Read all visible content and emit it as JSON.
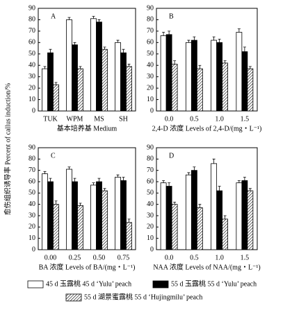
{
  "ylabel": "愈伤组织诱导率 Percent of callus induction/%",
  "legend": [
    {
      "name": "45 d 玉露桃 45 d ‘Yulu’ peach",
      "fill": "#ffffff"
    },
    {
      "name": "55 d 玉露桃 55 d ‘Yulu’ peach",
      "fill": "#000000"
    },
    {
      "name": "55 d 湖景蜜露桃 55 d ‘Hujingmilu’ peach",
      "fill": "hatch"
    }
  ],
  "chart_data": [
    {
      "type": "bar",
      "label": "A",
      "xlabel": "基本培养基 Medium",
      "categories": [
        "TUK",
        "WPM",
        "MS",
        "SH"
      ],
      "ylim": [
        0,
        90
      ],
      "yticks": [
        0,
        10,
        20,
        30,
        40,
        50,
        60,
        70,
        80,
        90
      ],
      "series": [
        {
          "values": [
            37,
            80,
            81,
            60
          ],
          "errors": [
            2,
            2,
            2,
            2
          ]
        },
        {
          "values": [
            51,
            58,
            78,
            51
          ],
          "errors": [
            3,
            2,
            2,
            3
          ]
        },
        {
          "values": [
            23,
            37,
            54,
            39
          ],
          "errors": [
            2,
            2,
            2,
            2
          ]
        }
      ]
    },
    {
      "type": "bar",
      "label": "B",
      "xlabel": "2,4-D 浓度 Levels of 2,4-D/(mg・L⁻¹)",
      "categories": [
        "0.0",
        "0.5",
        "1.0",
        "1.5"
      ],
      "ylim": [
        0,
        90
      ],
      "yticks": [
        0,
        10,
        20,
        30,
        40,
        50,
        60,
        70,
        80,
        90
      ],
      "series": [
        {
          "values": [
            66,
            60,
            62,
            69
          ],
          "errors": [
            3,
            2,
            3,
            3
          ]
        },
        {
          "values": [
            67,
            62,
            60,
            52
          ],
          "errors": [
            3,
            3,
            3,
            4
          ]
        },
        {
          "values": [
            41,
            37,
            42,
            37
          ],
          "errors": [
            3,
            3,
            2,
            2
          ]
        }
      ]
    },
    {
      "type": "bar",
      "label": "C",
      "xlabel": "BA 浓度 Levels of BA/(mg・L⁻¹)",
      "categories": [
        "0.00",
        "0.25",
        "0.50",
        "0.75"
      ],
      "ylim": [
        0,
        90
      ],
      "yticks": [
        0,
        10,
        20,
        30,
        40,
        50,
        60,
        70,
        80,
        90
      ],
      "series": [
        {
          "values": [
            67,
            71,
            57,
            64
          ],
          "errors": [
            2,
            2,
            2,
            2
          ]
        },
        {
          "values": [
            60,
            60,
            60,
            61
          ],
          "errors": [
            3,
            3,
            3,
            3
          ]
        },
        {
          "values": [
            40,
            39,
            52,
            24
          ],
          "errors": [
            3,
            2,
            2,
            3
          ]
        }
      ]
    },
    {
      "type": "bar",
      "label": "D",
      "xlabel": "NAA 浓度 Levels of NAA/(mg・L⁻¹)",
      "categories": [
        "0.0",
        "0.5",
        "1.0",
        "1.5"
      ],
      "ylim": [
        0,
        90
      ],
      "yticks": [
        0,
        10,
        20,
        30,
        40,
        50,
        60,
        70,
        80,
        90
      ],
      "series": [
        {
          "values": [
            59,
            66,
            76,
            59
          ],
          "errors": [
            2,
            2,
            4,
            2
          ]
        },
        {
          "values": [
            56,
            70,
            52,
            61
          ],
          "errors": [
            3,
            3,
            4,
            3
          ]
        },
        {
          "values": [
            40,
            37,
            27,
            52
          ],
          "errors": [
            2,
            3,
            3,
            2
          ]
        }
      ]
    }
  ]
}
